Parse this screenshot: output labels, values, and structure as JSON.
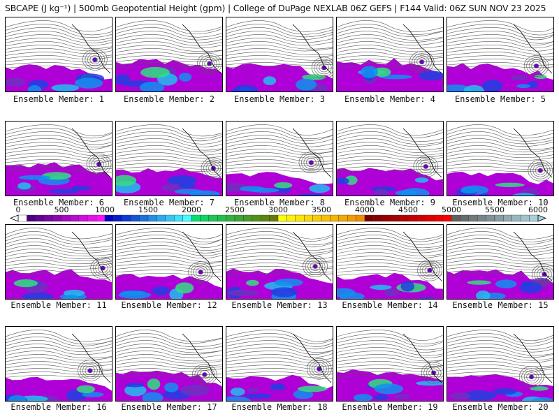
{
  "title": "SBCAPE (J kg⁻¹) | 500mb Geopotential Height (gpm) | College of DuPage NEXLAB 06Z GEFS | F144 Valid: 06Z SUN NOV 23 2025",
  "member_label_prefix": "Ensemble Member: ",
  "members": [
    {
      "label": "Ensemble Member: 1"
    },
    {
      "label": "Ensemble Member: 2"
    },
    {
      "label": "Ensemble Member: 3"
    },
    {
      "label": "Ensemble Member: 4"
    },
    {
      "label": "Ensemble Member: 5"
    },
    {
      "label": "Ensemble Member: 6"
    },
    {
      "label": "Ensemble Member: 7"
    },
    {
      "label": "Ensemble Member: 8"
    },
    {
      "label": "Ensemble Member: 9"
    },
    {
      "label": "Ensemble Member: 10"
    },
    {
      "label": "Ensemble Member: 11"
    },
    {
      "label": "Ensemble Member: 12"
    },
    {
      "label": "Ensemble Member: 13"
    },
    {
      "label": "Ensemble Member: 14"
    },
    {
      "label": "Ensemble Member: 15"
    },
    {
      "label": "Ensemble Member: 16"
    },
    {
      "label": "Ensemble Member: 17"
    },
    {
      "label": "Ensemble Member: 18"
    },
    {
      "label": "Ensemble Member: 19"
    },
    {
      "label": "Ensemble Member: 20"
    }
  ],
  "colorbar": {
    "ticks": [
      "0",
      "500",
      "1000",
      "1500",
      "2000",
      "2500",
      "3000",
      "3500",
      "4000",
      "4500",
      "5000",
      "5500",
      "6000"
    ],
    "min": 0,
    "max": 6000,
    "step": 100,
    "groups": [
      {
        "from": "#4b0082",
        "to": "#ff10ff"
      },
      {
        "from": "#0000c8",
        "to": "#40ffff"
      },
      {
        "from": "#00e070",
        "to": "#6a7a00"
      },
      {
        "from": "#ffff00",
        "to": "#f09000"
      },
      {
        "from": "#7a0000",
        "to": "#ff0000"
      },
      {
        "from": "#606060",
        "to": "#a8d0d8"
      }
    ],
    "below_color": "#ffffff"
  }
}
